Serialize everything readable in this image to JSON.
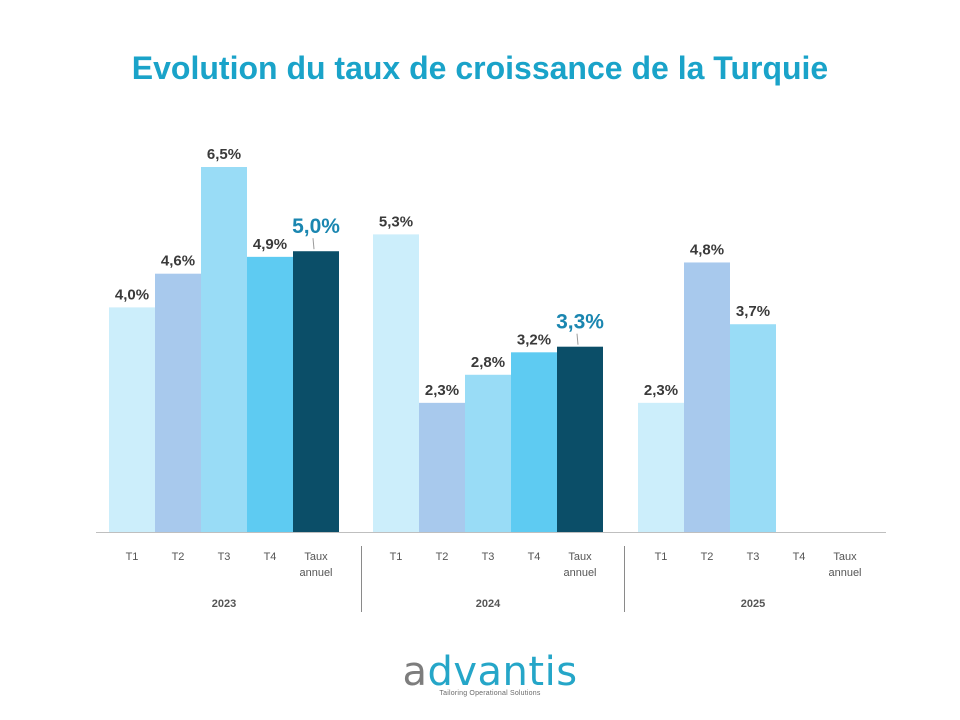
{
  "chart_data": {
    "type": "bar",
    "title": "Evolution du taux de croissance de la Turquie",
    "ylim": [
      0,
      6.5
    ],
    "grid": false,
    "groups": [
      {
        "year": "2023",
        "bars": [
          {
            "category": "T1",
            "value": 4.0,
            "label": "4,0%",
            "color": "#cceefb"
          },
          {
            "category": "T2",
            "value": 4.6,
            "label": "4,6%",
            "color": "#a8c9ed"
          },
          {
            "category": "T3",
            "value": 6.5,
            "label": "6,5%",
            "color": "#99dcf6"
          },
          {
            "category": "T4",
            "value": 4.9,
            "label": "4,9%",
            "color": "#5ecbf2"
          },
          {
            "category": "Taux annuel",
            "value": 5.0,
            "label": "5,0%",
            "color": "#0b4e68",
            "annual": true
          }
        ]
      },
      {
        "year": "2024",
        "bars": [
          {
            "category": "T1",
            "value": 5.3,
            "label": "5,3%",
            "color": "#cceefb"
          },
          {
            "category": "T2",
            "value": 2.3,
            "label": "2,3%",
            "color": "#a8c9ed"
          },
          {
            "category": "T3",
            "value": 2.8,
            "label": "2,8%",
            "color": "#99dcf6"
          },
          {
            "category": "T4",
            "value": 3.2,
            "label": "3,2%",
            "color": "#5ecbf2"
          },
          {
            "category": "Taux annuel",
            "value": 3.3,
            "label": "3,3%",
            "color": "#0b4e68",
            "annual": true
          }
        ]
      },
      {
        "year": "2025",
        "bars": [
          {
            "category": "T1",
            "value": 2.3,
            "label": "2,3%",
            "color": "#cceefb"
          },
          {
            "category": "T2",
            "value": 4.8,
            "label": "4,8%",
            "color": "#a8c9ed"
          },
          {
            "category": "T3",
            "value": 3.7,
            "label": "3,7%",
            "color": "#99dcf6"
          },
          {
            "category": "T4",
            "value": null,
            "label": "",
            "color": "#5ecbf2"
          },
          {
            "category": "Taux annuel",
            "value": null,
            "label": "",
            "color": "#0b4e68",
            "annual": true
          }
        ]
      }
    ],
    "colors": {
      "title": "#1aa3c9",
      "value_label": "#3a3a3a",
      "annual_label": "#1a86b0",
      "axis": "#bfbfbf",
      "tick_text": "#555555"
    }
  },
  "logo": {
    "first_letter": "a",
    "rest": "dvantis",
    "tagline": "Tailoring Operational Solutions"
  }
}
